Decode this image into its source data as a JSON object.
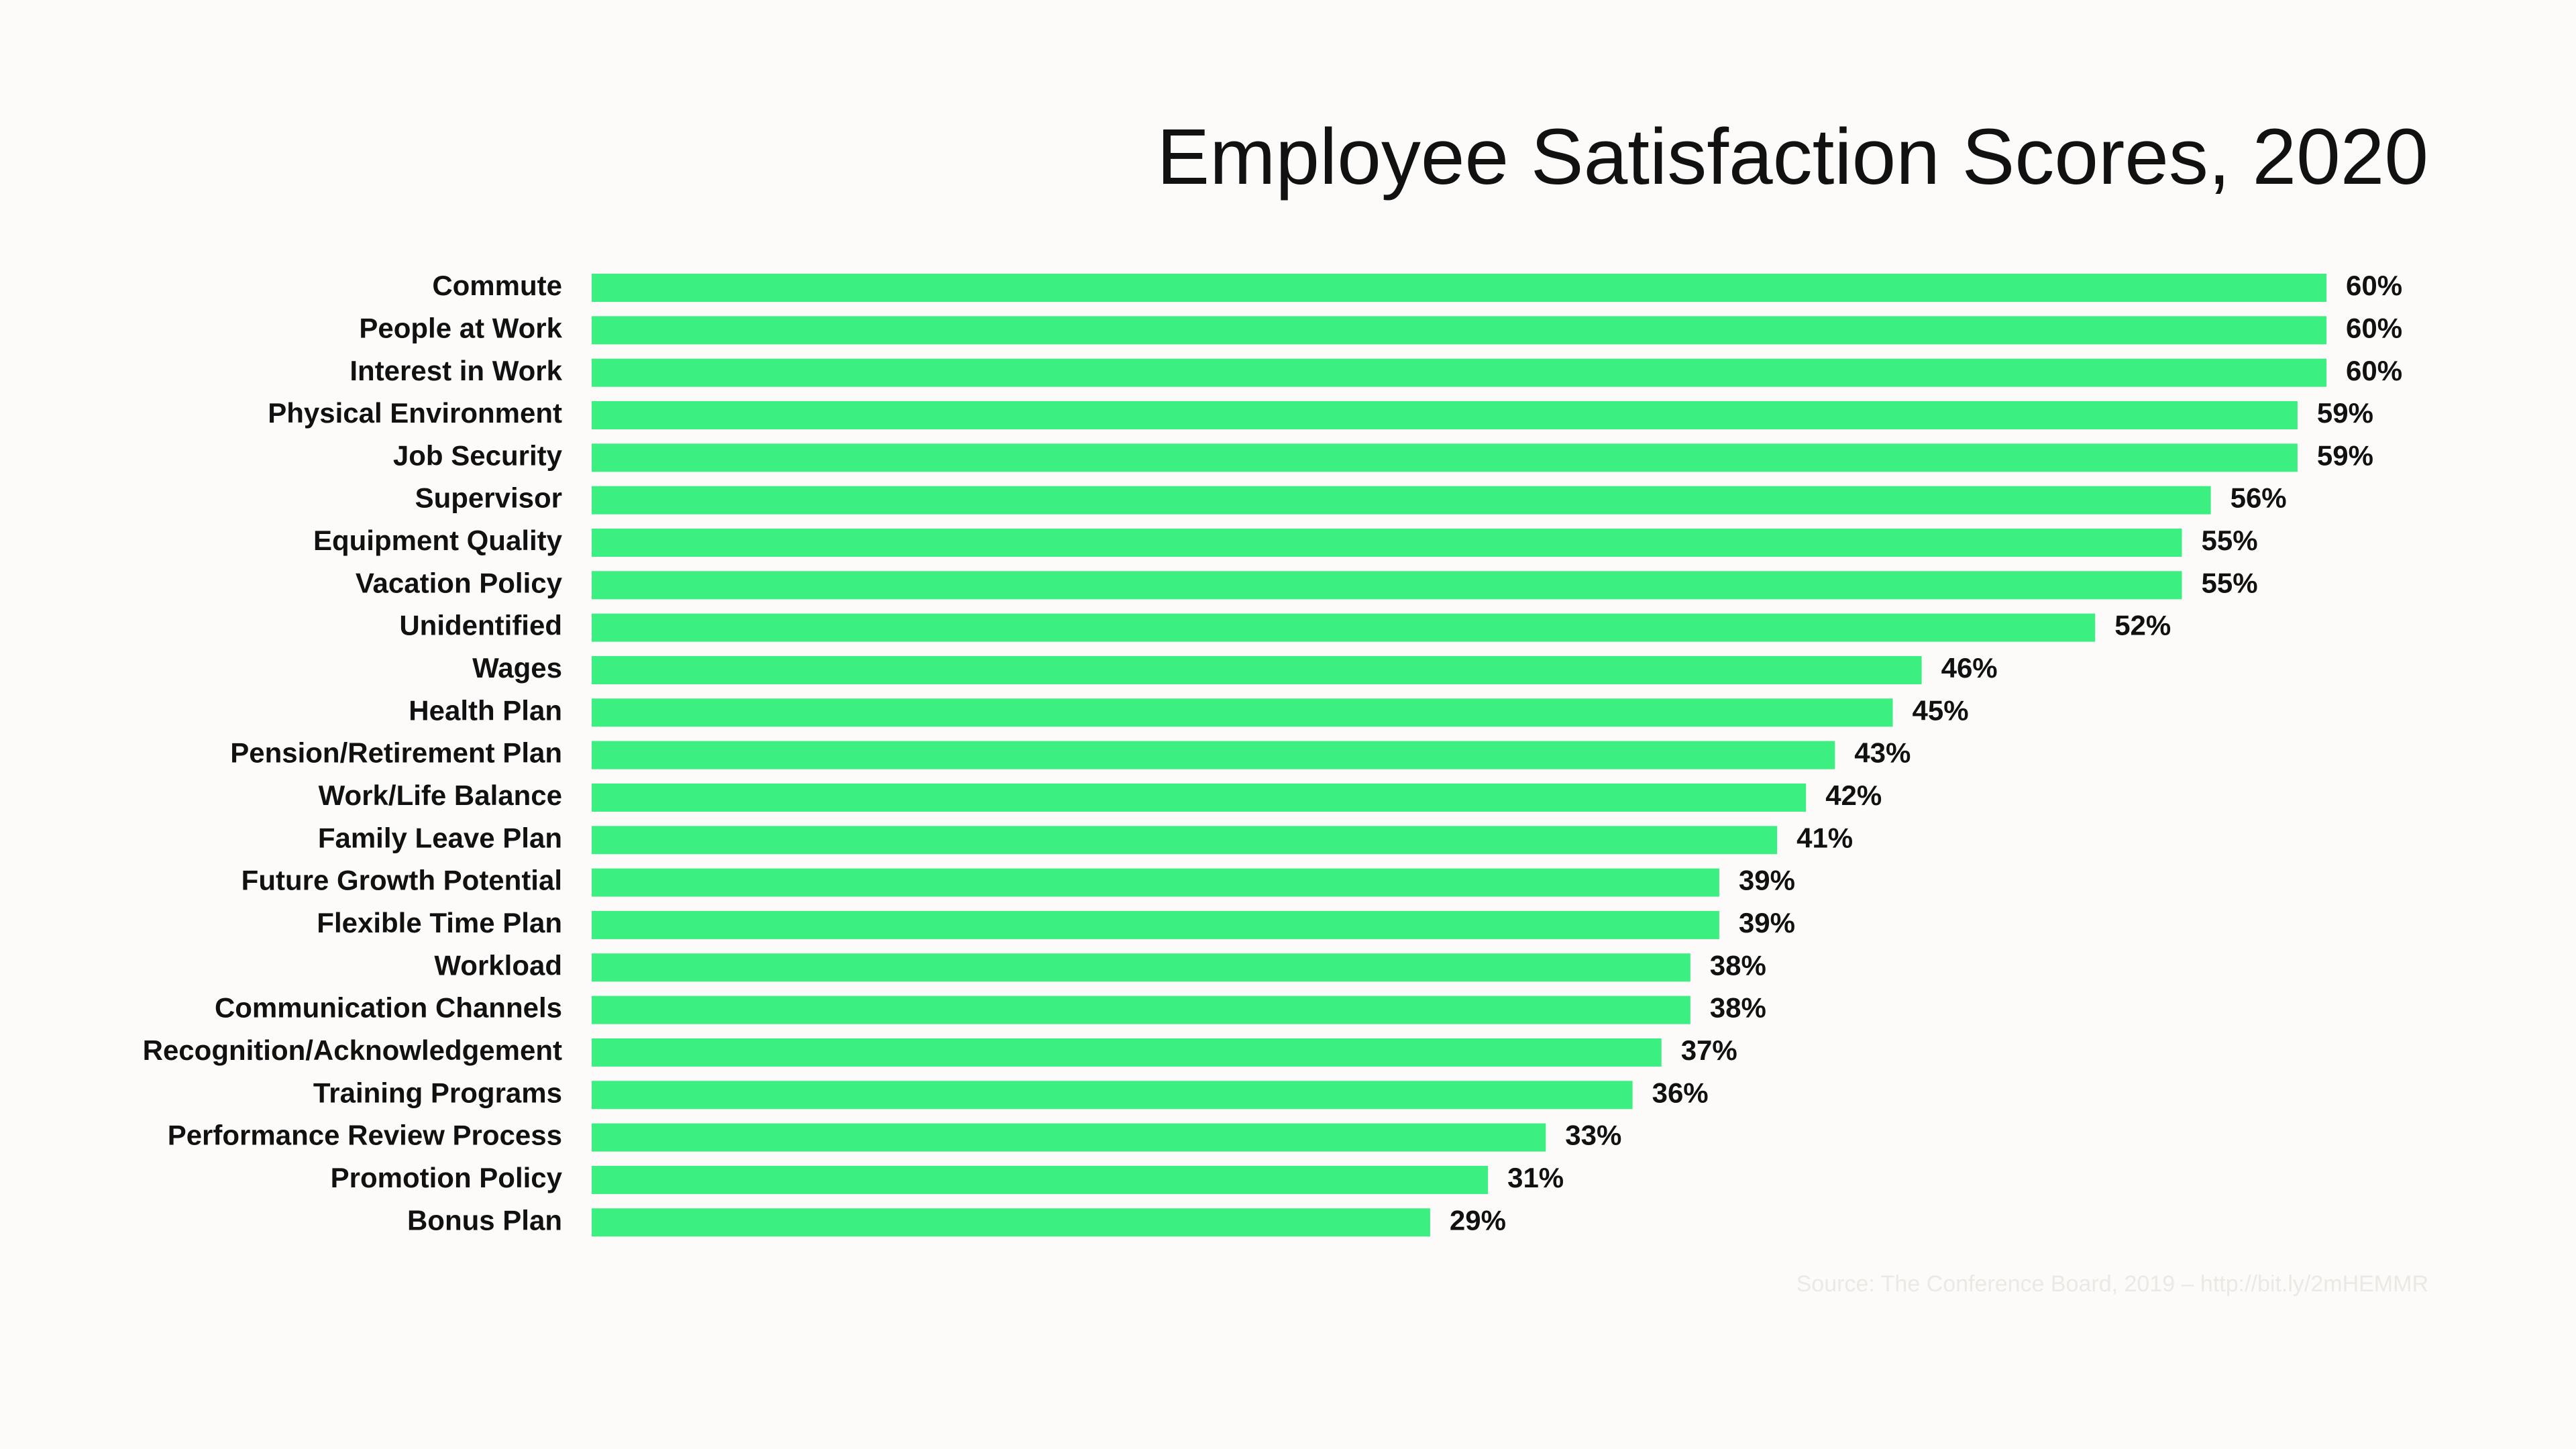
{
  "chart_data": {
    "type": "bar",
    "orientation": "horizontal",
    "title": "Employee Satisfaction Scores, 2020",
    "source": "Source: The Conference Board, 2019 – http://bit.ly/2mHEMMR",
    "color": "#3bef80",
    "categories": [
      "Commute",
      "People at Work",
      "Interest in Work",
      "Physical Environment",
      "Job Security",
      "Supervisor",
      "Equipment Quality",
      "Vacation Policy",
      "Unidentified",
      "Wages",
      "Health Plan",
      "Pension/Retirement Plan",
      "Work/Life Balance",
      "Family Leave Plan",
      "Future Growth Potential",
      "Flexible Time Plan",
      "Workload",
      "Communication Channels",
      "Recognition/Acknowledgement",
      "Training Programs",
      "Performance Review Process",
      "Promotion Policy",
      "Bonus Plan"
    ],
    "values": [
      60,
      60,
      60,
      59,
      59,
      56,
      55,
      55,
      52,
      46,
      45,
      43,
      42,
      41,
      39,
      39,
      38,
      38,
      37,
      36,
      33,
      31,
      29
    ],
    "value_labels": [
      "60%",
      "60%",
      "60%",
      "59%",
      "59%",
      "56%",
      "55%",
      "55%",
      "52%",
      "46%",
      "45%",
      "43%",
      "42%",
      "41%",
      "39%",
      "39%",
      "38%",
      "38%",
      "37%",
      "36%",
      "33%",
      "31%",
      "29%"
    ]
  }
}
